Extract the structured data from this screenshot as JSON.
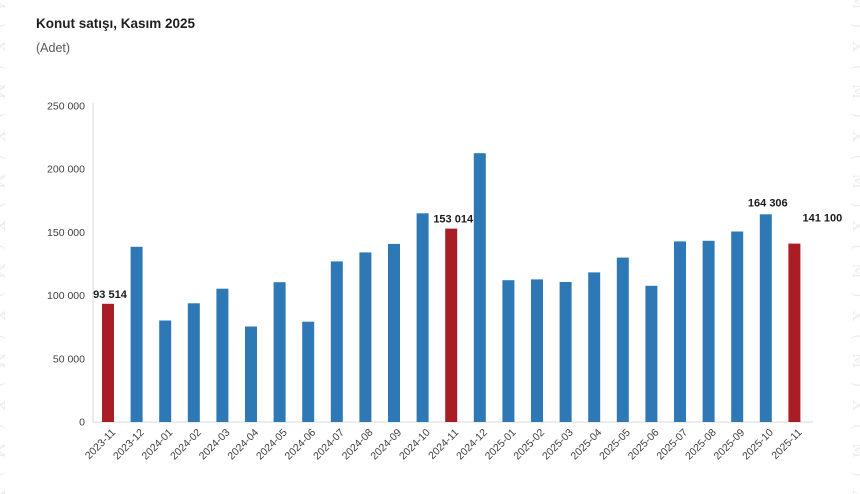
{
  "page": {
    "title": "Konut satışı, Kasım 2025",
    "subtitle": "(Adet)",
    "edge_pattern": "M)X(",
    "background_color": "#ffffff",
    "edge_pattern_color": "#ececec"
  },
  "chart_data": {
    "type": "bar",
    "title": "Konut satışı, Kasım 2025",
    "ylabel": "(Adet)",
    "xlabel": "",
    "categories": [
      "2023-11",
      "2023-12",
      "2024-01",
      "2024-02",
      "2024-03",
      "2024-04",
      "2024-05",
      "2024-06",
      "2024-07",
      "2024-08",
      "2024-09",
      "2024-10",
      "2024-11",
      "2024-12",
      "2025-01",
      "2025-02",
      "2025-03",
      "2025-04",
      "2025-05",
      "2025-06",
      "2025-07",
      "2025-08",
      "2025-09",
      "2025-10",
      "2025-11"
    ],
    "values": [
      93514,
      138577,
      80308,
      93902,
      105476,
      75569,
      110588,
      79313,
      127088,
      134155,
      140919,
      165138,
      153014,
      212637,
      112173,
      112818,
      110795,
      118359,
      130025,
      107723,
      142858,
      143319,
      150738,
      164306,
      141100
    ],
    "highlight_indices": [
      0,
      12,
      24
    ],
    "colors": {
      "bar_default": "#2E79B5",
      "bar_highlight": "#A91E25",
      "axis_line": "#d9d9d9",
      "tick_text": "#3f3f3f",
      "data_label_text": "#1a1a1a"
    },
    "data_labels": [
      {
        "index": 0,
        "text": "93 514",
        "dx": 2,
        "dy": 0
      },
      {
        "index": 12,
        "text": "153 014",
        "dx": 2,
        "dy": 0
      },
      {
        "index": 23,
        "text": "164 306",
        "dx": 2,
        "dy": -2
      },
      {
        "index": 24,
        "text": "141 100",
        "dx": 28,
        "dy": -16
      }
    ],
    "ylim": [
      0,
      250000
    ],
    "ytick_step": 50000,
    "ytick_labels": [
      "0",
      "50 000",
      "100 000",
      "150 000",
      "200 000",
      "250 000"
    ],
    "xtick_rotation": -45,
    "grid": false,
    "legend": "none"
  }
}
